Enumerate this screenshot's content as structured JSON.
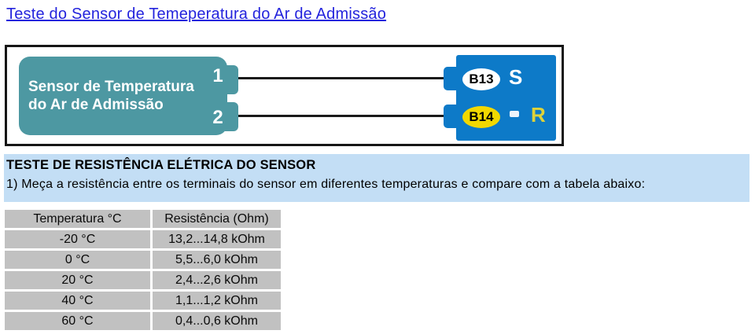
{
  "title": {
    "text": "Teste do Sensor de Temeperatura do Ar de Admissão",
    "color": "#2323dd"
  },
  "diagram": {
    "sensor": {
      "label_line1": "Sensor de Temperatura",
      "label_line2": "do Ar de Admissão",
      "pin1": "1",
      "pin2": "2"
    },
    "connector": {
      "terminal_top": {
        "pin": "B13",
        "signal": "S"
      },
      "terminal_bottom": {
        "pin": "B14",
        "dash": "-",
        "signal": "R"
      }
    },
    "colors": {
      "sensor_body": "#4d98a2",
      "connector_body": "#0d7ac8",
      "pin_b13_oval": "#ffffff",
      "pin_b14_oval": "#f2d800",
      "signal_r_text": "#ded23a",
      "wire": "#1a1a1a"
    }
  },
  "section": {
    "heading": "TESTE DE RESISTÊNCIA ELÉTRICA DO SENSOR",
    "instruction": "1) Meça a resistência entre os terminais do sensor em diferentes temperaturas e compare com a tabela abaixo:",
    "background": "#c3def5"
  },
  "resistance_table": {
    "headers": [
      "Temperatura °C",
      "Resistência (Ohm)"
    ],
    "rows": [
      [
        "-20 °C",
        "13,2...14,8 kOhm"
      ],
      [
        "0 °C",
        "5,5...6,0 kOhm"
      ],
      [
        "20 °C",
        "2,4...2,6 kOhm"
      ],
      [
        "40 °C",
        "1,1...1,2 kOhm"
      ],
      [
        "60 °C",
        "0,4...0,6 kOhm"
      ]
    ],
    "cell_background": "#c1c1c1"
  }
}
